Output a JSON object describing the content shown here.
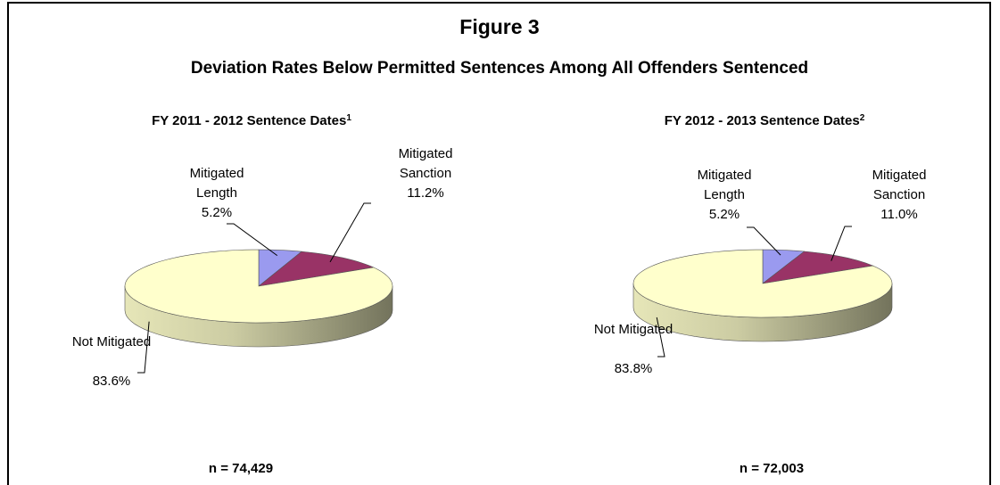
{
  "title": "Figure 3",
  "subtitle": "Deviation Rates Below Permitted Sentences Among All Offenders Sentenced",
  "chart_data": [
    {
      "type": "pie",
      "title": "FY 2011 - 2012 Sentence Dates",
      "title_note": "1",
      "categories": [
        "Mitigated Length",
        "Mitigated Sanction",
        "Not Mitigated"
      ],
      "values": [
        5.2,
        11.2,
        83.6
      ],
      "value_labels": [
        "5.2%",
        "11.2%",
        "83.6%"
      ],
      "colors": [
        "#9a9aef",
        "#993366",
        "#ffffcc"
      ],
      "note": "n = 74,429"
    },
    {
      "type": "pie",
      "title": "FY 2012 - 2013 Sentence Dates",
      "title_note": "2",
      "categories": [
        "Mitigated Length",
        "Mitigated Sanction",
        "Not Mitigated"
      ],
      "values": [
        5.2,
        11.0,
        83.8
      ],
      "value_labels": [
        "5.2%",
        "11.0%",
        "83.8%"
      ],
      "colors": [
        "#9a9aef",
        "#993366",
        "#ffffcc"
      ],
      "note": "n = 72,003"
    }
  ]
}
